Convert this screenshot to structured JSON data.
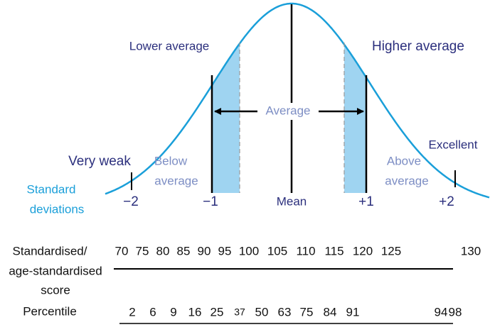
{
  "labels": {
    "lower_average": "Lower average",
    "higher_average": "Higher average",
    "average": "Average",
    "very_weak": "Very weak",
    "below_average": [
      "Below",
      "average"
    ],
    "above_average": [
      "Above",
      "average"
    ],
    "excellent": "Excellent",
    "standard_deviations": [
      "Standard",
      "deviations"
    ]
  },
  "sd_labels": [
    "−2",
    "−1",
    "Mean",
    "+1",
    "+2"
  ],
  "score": {
    "label": [
      "Standardised/",
      "age-standardised",
      "score"
    ],
    "values": [
      70,
      75,
      80,
      85,
      90,
      95,
      100,
      105,
      110,
      115,
      120,
      125,
      130
    ]
  },
  "percentile": {
    "label": "Percentile",
    "values": [
      2,
      6,
      9,
      16,
      25,
      37,
      50,
      63,
      75,
      84,
      91,
      94,
      98
    ]
  }
}
